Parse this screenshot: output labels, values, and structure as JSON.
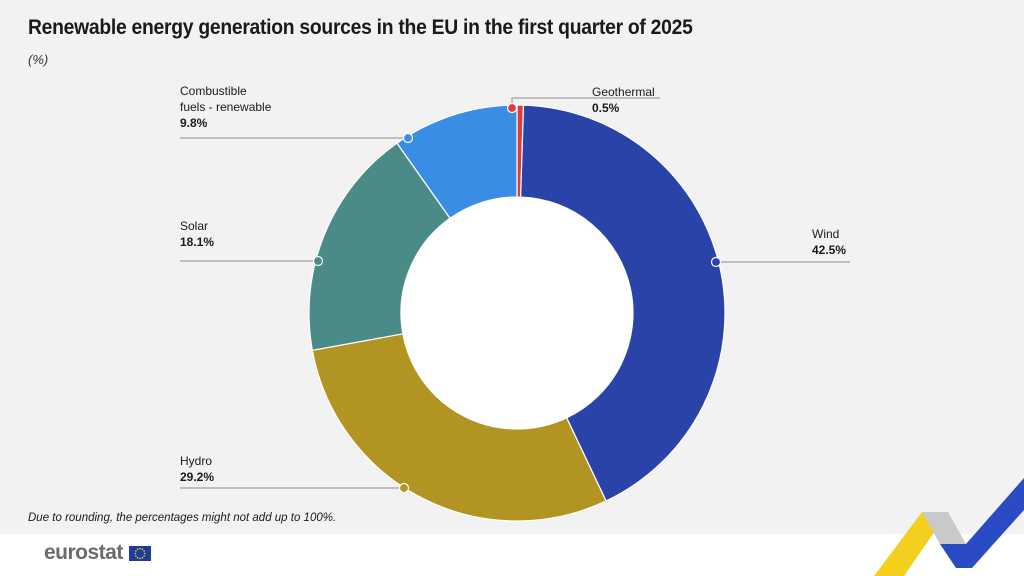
{
  "header": {
    "title": "Renewable energy generation sources in the EU in the first quarter of  2025",
    "subtitle": "(%)"
  },
  "footnote": "Due to rounding, the percentages might not add up to 100%.",
  "branding": {
    "logo_text": "eurostat",
    "flag_icon": "eu-flag-icon"
  },
  "chart_data": {
    "type": "pie",
    "style": "donut",
    "title": "Renewable energy generation sources in the EU in the first quarter of  2025",
    "unit": "(%)",
    "start_angle_deg": 0,
    "direction": "clockwise",
    "slices": [
      {
        "name": "Geothermal",
        "value": 0.5,
        "label_value": "0.5%",
        "color": "#e03c3c"
      },
      {
        "name": "Wind",
        "value": 42.5,
        "label_value": "42.5%",
        "color": "#2a43a8"
      },
      {
        "name": "Hydro",
        "value": 29.2,
        "label_value": "29.2%",
        "color": "#b29423"
      },
      {
        "name": "Solar",
        "value": 18.1,
        "label_value": "18.1%",
        "color": "#4a8b87"
      },
      {
        "name": "Combustible fuels - renewable",
        "value": 9.8,
        "label_value": "9.8%",
        "color": "#3a8de4"
      }
    ]
  }
}
